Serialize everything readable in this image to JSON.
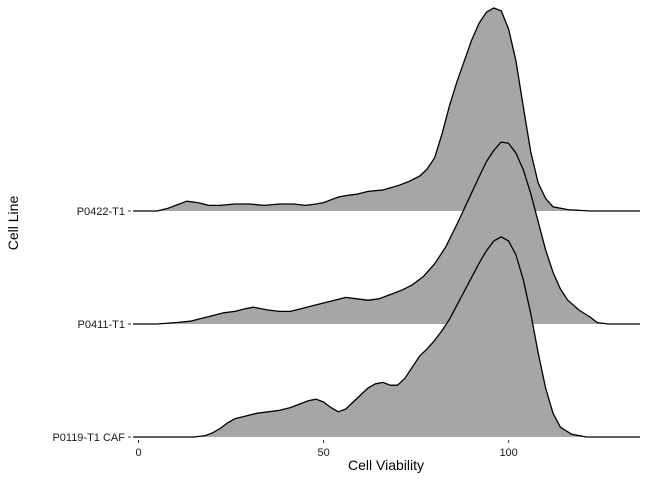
{
  "chart_data": {
    "type": "ridgeline",
    "xlabel": "Cell Viability",
    "ylabel": "Cell Line",
    "xlim": [
      -1.5,
      135.5
    ],
    "x_ticks": [
      0,
      50,
      100
    ],
    "fill_color": "#a6a6a6",
    "line_color": "#000000",
    "grid": false,
    "series": [
      {
        "name": "P0422-T1",
        "points": [
          [
            -1.5,
            0.0
          ],
          [
            5,
            0.0
          ],
          [
            8,
            0.02
          ],
          [
            11,
            0.05
          ],
          [
            13,
            0.07
          ],
          [
            16,
            0.06
          ],
          [
            19,
            0.04
          ],
          [
            22,
            0.04
          ],
          [
            26,
            0.05
          ],
          [
            30,
            0.05
          ],
          [
            34,
            0.04
          ],
          [
            38,
            0.05
          ],
          [
            42,
            0.05
          ],
          [
            45,
            0.04
          ],
          [
            48,
            0.05
          ],
          [
            50,
            0.06
          ],
          [
            52,
            0.08
          ],
          [
            54,
            0.1
          ],
          [
            56,
            0.11
          ],
          [
            59,
            0.12
          ],
          [
            62,
            0.14
          ],
          [
            66,
            0.15
          ],
          [
            70,
            0.18
          ],
          [
            73,
            0.21
          ],
          [
            76,
            0.25
          ],
          [
            78,
            0.3
          ],
          [
            80,
            0.38
          ],
          [
            82,
            0.55
          ],
          [
            84,
            0.75
          ],
          [
            86,
            0.92
          ],
          [
            88,
            1.07
          ],
          [
            90,
            1.22
          ],
          [
            92,
            1.34
          ],
          [
            94,
            1.42
          ],
          [
            96,
            1.45
          ],
          [
            98,
            1.43
          ],
          [
            100,
            1.3
          ],
          [
            102,
            1.07
          ],
          [
            104,
            0.74
          ],
          [
            106,
            0.42
          ],
          [
            108,
            0.2
          ],
          [
            110,
            0.09
          ],
          [
            112,
            0.03
          ],
          [
            116,
            0.01
          ],
          [
            122,
            0.0
          ],
          [
            135.5,
            0.0
          ]
        ]
      },
      {
        "name": "P0411-T1",
        "points": [
          [
            -1.5,
            0.0
          ],
          [
            5,
            0.0
          ],
          [
            10,
            0.01
          ],
          [
            14,
            0.02
          ],
          [
            17,
            0.04
          ],
          [
            20,
            0.06
          ],
          [
            23,
            0.08
          ],
          [
            26,
            0.09
          ],
          [
            29,
            0.11
          ],
          [
            31,
            0.12
          ],
          [
            33,
            0.11
          ],
          [
            35,
            0.1
          ],
          [
            38,
            0.09
          ],
          [
            41,
            0.09
          ],
          [
            44,
            0.11
          ],
          [
            47,
            0.13
          ],
          [
            50,
            0.15
          ],
          [
            53,
            0.17
          ],
          [
            56,
            0.19
          ],
          [
            59,
            0.18
          ],
          [
            62,
            0.17
          ],
          [
            65,
            0.18
          ],
          [
            68,
            0.21
          ],
          [
            71,
            0.24
          ],
          [
            74,
            0.28
          ],
          [
            77,
            0.34
          ],
          [
            80,
            0.43
          ],
          [
            83,
            0.55
          ],
          [
            86,
            0.71
          ],
          [
            89,
            0.88
          ],
          [
            92,
            1.05
          ],
          [
            94,
            1.16
          ],
          [
            96,
            1.24
          ],
          [
            98,
            1.3
          ],
          [
            100,
            1.29
          ],
          [
            102,
            1.22
          ],
          [
            104,
            1.1
          ],
          [
            106,
            0.93
          ],
          [
            108,
            0.73
          ],
          [
            110,
            0.53
          ],
          [
            112,
            0.37
          ],
          [
            114,
            0.25
          ],
          [
            116,
            0.17
          ],
          [
            119,
            0.1
          ],
          [
            122,
            0.05
          ],
          [
            124,
            0.01
          ],
          [
            127,
            0.0
          ],
          [
            135.5,
            0.0
          ]
        ]
      },
      {
        "name": "P0119-T1 CAF",
        "points": [
          [
            -1.5,
            0.0
          ],
          [
            10,
            0.0
          ],
          [
            15,
            0.0
          ],
          [
            18,
            0.01
          ],
          [
            20,
            0.03
          ],
          [
            22,
            0.06
          ],
          [
            24,
            0.1
          ],
          [
            26,
            0.13
          ],
          [
            29,
            0.15
          ],
          [
            32,
            0.17
          ],
          [
            35,
            0.18
          ],
          [
            38,
            0.19
          ],
          [
            41,
            0.21
          ],
          [
            44,
            0.24
          ],
          [
            46,
            0.26
          ],
          [
            48,
            0.27
          ],
          [
            50,
            0.25
          ],
          [
            52,
            0.21
          ],
          [
            54,
            0.18
          ],
          [
            56,
            0.2
          ],
          [
            58,
            0.25
          ],
          [
            60,
            0.3
          ],
          [
            62,
            0.35
          ],
          [
            64,
            0.38
          ],
          [
            66,
            0.39
          ],
          [
            68,
            0.37
          ],
          [
            70,
            0.37
          ],
          [
            72,
            0.42
          ],
          [
            74,
            0.5
          ],
          [
            76,
            0.58
          ],
          [
            78,
            0.63
          ],
          [
            80,
            0.69
          ],
          [
            82,
            0.76
          ],
          [
            84,
            0.84
          ],
          [
            86,
            0.94
          ],
          [
            88,
            1.04
          ],
          [
            90,
            1.14
          ],
          [
            92,
            1.24
          ],
          [
            94,
            1.33
          ],
          [
            96,
            1.4
          ],
          [
            98,
            1.43
          ],
          [
            100,
            1.4
          ],
          [
            102,
            1.3
          ],
          [
            104,
            1.12
          ],
          [
            106,
            0.88
          ],
          [
            108,
            0.6
          ],
          [
            110,
            0.35
          ],
          [
            112,
            0.17
          ],
          [
            114,
            0.07
          ],
          [
            117,
            0.02
          ],
          [
            121,
            0.0
          ],
          [
            135.5,
            0.0
          ]
        ]
      }
    ]
  }
}
